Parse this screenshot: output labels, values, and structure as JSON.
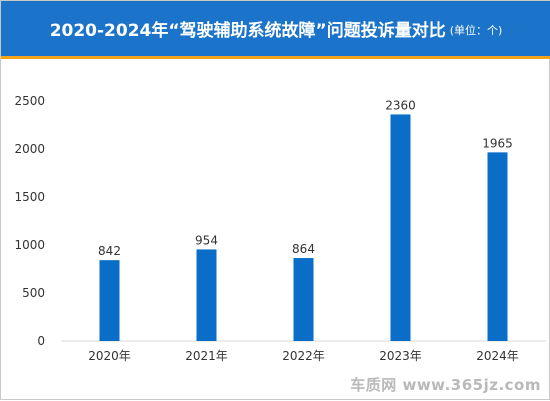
{
  "header": {
    "title": "2020-2024年“驾驶辅助系统故障”问题投诉量对比",
    "unit": "(单位：个)"
  },
  "colors": {
    "title_bg": "#1b74c9",
    "title_accent": "#f3a21a",
    "bar": "#0a6ec8",
    "axis_text": "#333333",
    "gridline": "#d9d9d9"
  },
  "chart_data": {
    "type": "bar",
    "categories": [
      "2020年",
      "2021年",
      "2022年",
      "2023年",
      "2024年"
    ],
    "values": [
      842,
      954,
      864,
      2360,
      1965
    ],
    "ylim": [
      0,
      2500
    ],
    "yticks": [
      0,
      500,
      1000,
      1500,
      2000,
      2500
    ],
    "grid": false,
    "legend": "none"
  },
  "watermark": "车质网 www.365jz.com"
}
